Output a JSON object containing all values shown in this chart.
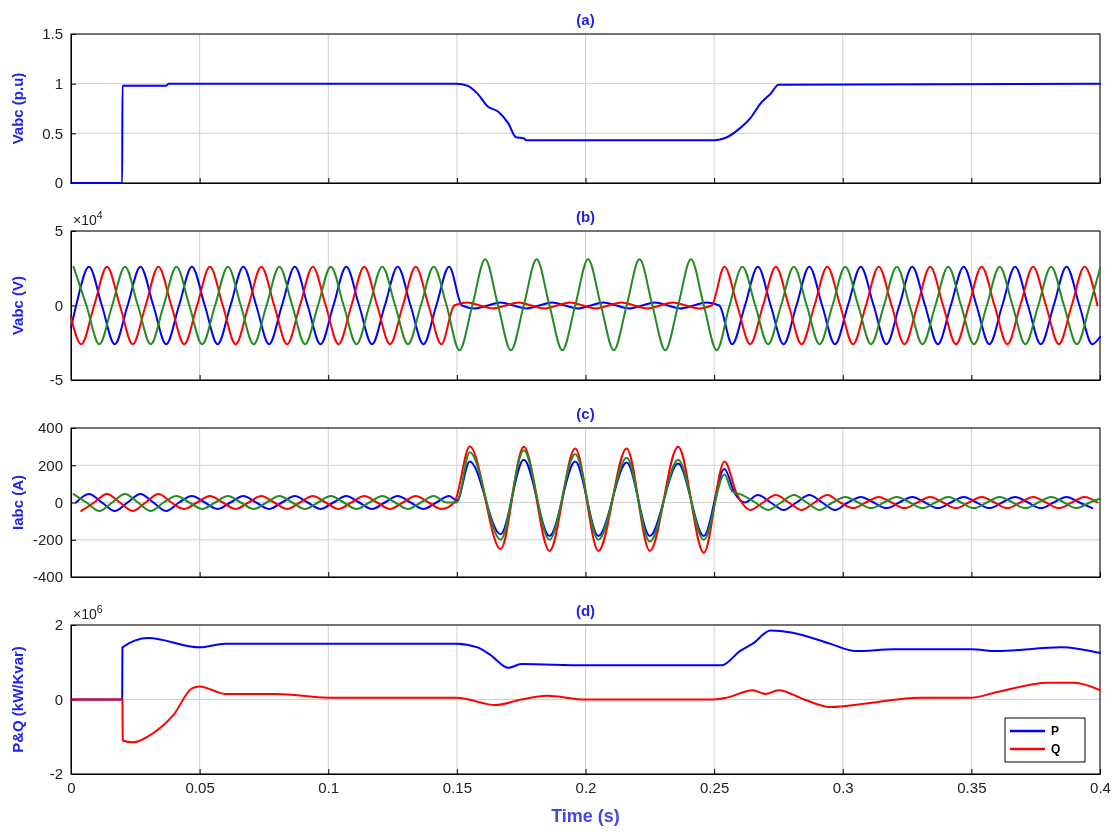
{
  "chart_data": [
    {
      "type": "line",
      "title": "(a)",
      "ylabel": "Vabc (p.u)",
      "xlim": [
        0,
        0.4
      ],
      "xticks": [
        0,
        0.05,
        0.1,
        0.15,
        0.2,
        0.25,
        0.3,
        0.35,
        0.4
      ],
      "ylim": [
        0,
        1.5
      ],
      "yticks": [
        0,
        0.5,
        1,
        1.5
      ],
      "grid": true,
      "tick_labels": "y",
      "series": [
        {
          "color": "#0000ff",
          "x": [
            0,
            0.0199,
            0.02,
            0.037,
            0.038,
            0.15,
            0.154,
            0.158,
            0.162,
            0.166,
            0.17,
            0.173,
            0.176,
            0.177,
            0.25,
            0.254,
            0.26,
            0.264,
            0.268,
            0.272,
            0.275,
            0.4
          ],
          "values": [
            0,
            0,
            0.98,
            0.98,
            1,
            1,
            0.98,
            0.9,
            0.77,
            0.72,
            0.6,
            0.46,
            0.45,
            0.43,
            0.43,
            0.45,
            0.55,
            0.65,
            0.8,
            0.9,
            0.99,
            1
          ]
        }
      ]
    },
    {
      "type": "line",
      "title": "(b)",
      "ylabel": "Vabc (V)",
      "annotations": [
        "×10$^{4}$"
      ],
      "xlim": [
        0,
        0.4
      ],
      "xticks": [
        0,
        0.05,
        0.1,
        0.15,
        0.2,
        0.25,
        0.3,
        0.35,
        0.4
      ],
      "ylim": [
        -5,
        5
      ],
      "yticks": [
        -5,
        0,
        5
      ],
      "grid": true,
      "tick_labels": "y",
      "series": [
        {
          "color": "#0000ff",
          "x": [
            0,
            0.002,
            0.007,
            0.012,
            0.017,
            0.022,
            0.027,
            0.032,
            0.037,
            0.042,
            0.047,
            0.052,
            0.057,
            0.062,
            0.067,
            0.072,
            0.077,
            0.082,
            0.087,
            0.092,
            0.097,
            0.102,
            0.107,
            0.112,
            0.117,
            0.122,
            0.127,
            0.132,
            0.137,
            0.142,
            0.147,
            0.152,
            0.157,
            0.162,
            0.167,
            0.172,
            0.177,
            0.182,
            0.187,
            0.192,
            0.197,
            0.202,
            0.207,
            0.212,
            0.217,
            0.222,
            0.227,
            0.232,
            0.237,
            0.242,
            0.247,
            0.252,
            0.257,
            0.262,
            0.267,
            0.272,
            0.277,
            0.282,
            0.287,
            0.292,
            0.297,
            0.302,
            0.307,
            0.312,
            0.317,
            0.322,
            0.327,
            0.332,
            0.337,
            0.342,
            0.347,
            0.352,
            0.357,
            0.362,
            0.367,
            0.372,
            0.377,
            0.382,
            0.387,
            0.392,
            0.397,
            0.4
          ],
          "values": [
            -1.5,
            0,
            2.6,
            0,
            -2.6,
            0,
            2.6,
            0,
            -2.6,
            0,
            2.6,
            0,
            -2.6,
            0,
            2.6,
            0,
            -2.6,
            0,
            2.6,
            0,
            -2.6,
            0,
            2.6,
            0,
            -2.6,
            0,
            2.6,
            0,
            -2.6,
            0,
            2.6,
            0,
            -0.2,
            0,
            0.2,
            0,
            -0.2,
            0,
            0.2,
            0,
            -0.2,
            0,
            0.2,
            0,
            -0.2,
            0,
            0.2,
            0,
            -0.2,
            0,
            0.2,
            0,
            -2.6,
            0,
            2.6,
            0,
            -2.6,
            0,
            2.6,
            0,
            -2.6,
            0,
            2.6,
            0,
            -2.6,
            0,
            2.6,
            0,
            -2.6,
            0,
            2.6,
            0,
            -2.6,
            0,
            2.6,
            0,
            -2.6,
            0,
            2.6,
            0,
            -2.6,
            -2.1
          ]
        },
        {
          "color": "#ff0000",
          "x": [
            0,
            0.004,
            0.009,
            0.014,
            0.019,
            0.024,
            0.029,
            0.034,
            0.039,
            0.044,
            0.049,
            0.054,
            0.059,
            0.064,
            0.069,
            0.074,
            0.079,
            0.084,
            0.089,
            0.094,
            0.099,
            0.104,
            0.109,
            0.114,
            0.119,
            0.124,
            0.129,
            0.134,
            0.139,
            0.144,
            0.149,
            0.154,
            0.159,
            0.164,
            0.169,
            0.174,
            0.179,
            0.184,
            0.189,
            0.194,
            0.199,
            0.204,
            0.209,
            0.214,
            0.219,
            0.224,
            0.229,
            0.234,
            0.239,
            0.244,
            0.249,
            0.254,
            0.259,
            0.264,
            0.269,
            0.274,
            0.279,
            0.284,
            0.289,
            0.294,
            0.299,
            0.304,
            0.309,
            0.314,
            0.319,
            0.324,
            0.329,
            0.334,
            0.339,
            0.344,
            0.349,
            0.354,
            0.359,
            0.364,
            0.369,
            0.374,
            0.379,
            0.384,
            0.389,
            0.394,
            0.399
          ],
          "values": [
            -0.8,
            -2.6,
            0,
            2.6,
            0,
            -2.6,
            0,
            2.6,
            0,
            -2.6,
            0,
            2.6,
            0,
            -2.6,
            0,
            2.6,
            0,
            -2.6,
            0,
            2.6,
            0,
            -2.6,
            0,
            2.6,
            0,
            -2.6,
            0,
            2.6,
            0,
            -2.6,
            0,
            0.2,
            0,
            -0.2,
            0,
            0.2,
            0,
            -0.2,
            0,
            0.2,
            0,
            -0.2,
            0,
            0.2,
            0,
            -0.2,
            0,
            0.2,
            0,
            -0.2,
            0,
            2.6,
            0,
            -2.6,
            0,
            2.6,
            0,
            -2.6,
            0,
            2.6,
            0,
            -2.6,
            0,
            2.6,
            0,
            -2.6,
            0,
            2.6,
            0,
            -2.6,
            0,
            2.6,
            0,
            -2.6,
            0,
            2.6,
            0,
            -2.6,
            0,
            2.6,
            0
          ]
        },
        {
          "color": "#228b22",
          "x": [
            0.001,
            0.006,
            0.011,
            0.016,
            0.021,
            0.026,
            0.031,
            0.036,
            0.041,
            0.046,
            0.051,
            0.056,
            0.061,
            0.066,
            0.071,
            0.076,
            0.081,
            0.086,
            0.091,
            0.096,
            0.101,
            0.106,
            0.111,
            0.116,
            0.121,
            0.126,
            0.131,
            0.136,
            0.141,
            0.146,
            0.151,
            0.156,
            0.161,
            0.166,
            0.171,
            0.176,
            0.181,
            0.186,
            0.191,
            0.196,
            0.201,
            0.206,
            0.211,
            0.216,
            0.221,
            0.226,
            0.231,
            0.236,
            0.241,
            0.246,
            0.251,
            0.256,
            0.261,
            0.266,
            0.271,
            0.276,
            0.281,
            0.286,
            0.291,
            0.296,
            0.301,
            0.306,
            0.311,
            0.316,
            0.321,
            0.326,
            0.331,
            0.336,
            0.341,
            0.346,
            0.351,
            0.356,
            0.361,
            0.366,
            0.371,
            0.376,
            0.381,
            0.386,
            0.391,
            0.396,
            0.4
          ],
          "values": [
            2.6,
            0,
            -2.6,
            0,
            2.6,
            0,
            -2.6,
            0,
            2.6,
            0,
            -2.6,
            0,
            2.6,
            0,
            -2.6,
            0,
            2.6,
            0,
            -2.6,
            0,
            2.6,
            0,
            -2.6,
            0,
            2.6,
            0,
            -2.6,
            0,
            2.6,
            0,
            -3,
            0,
            3.1,
            0,
            -3,
            0,
            3.1,
            0,
            -3,
            0,
            3.1,
            0,
            -3,
            0,
            3.1,
            0,
            -3,
            0,
            3.1,
            0,
            -3,
            0,
            2.6,
            0,
            -2.6,
            0,
            2.6,
            0,
            -2.6,
            0,
            2.6,
            0,
            -2.6,
            0,
            2.6,
            0,
            -2.6,
            0,
            2.6,
            0,
            -2.6,
            0,
            2.6,
            0,
            -2.6,
            0,
            2.6,
            0,
            -2.6,
            0,
            2.5
          ]
        }
      ]
    },
    {
      "type": "line",
      "title": "(c)",
      "ylabel": "Iabc (A)",
      "xlim": [
        0,
        0.4
      ],
      "xticks": [
        0,
        0.05,
        0.1,
        0.15,
        0.2,
        0.25,
        0.3,
        0.35,
        0.4
      ],
      "ylim": [
        -400,
        400
      ],
      "yticks": [
        -400,
        -200,
        0,
        200,
        400
      ],
      "grid": true,
      "tick_labels": "y",
      "series": [
        {
          "color": "#0000ff",
          "x": [
            0.002,
            0.007,
            0.012,
            0.017,
            0.022,
            0.027,
            0.032,
            0.037,
            0.042,
            0.047,
            0.052,
            0.057,
            0.062,
            0.067,
            0.072,
            0.077,
            0.082,
            0.087,
            0.092,
            0.097,
            0.102,
            0.107,
            0.112,
            0.117,
            0.122,
            0.127,
            0.132,
            0.137,
            0.142,
            0.147,
            0.15,
            0.155,
            0.167,
            0.176,
            0.186,
            0.196,
            0.205,
            0.216,
            0.225,
            0.236,
            0.246,
            0.254,
            0.258,
            0.262,
            0.267,
            0.272,
            0.277,
            0.282,
            0.287,
            0.292,
            0.297,
            0.302,
            0.307,
            0.312,
            0.317,
            0.322,
            0.327,
            0.332,
            0.337,
            0.342,
            0.347,
            0.352,
            0.357,
            0.362,
            0.367,
            0.372,
            0.377,
            0.382,
            0.387,
            0.392,
            0.397
          ],
          "values": [
            0,
            45,
            0,
            -45,
            0,
            45,
            0,
            -45,
            0,
            35,
            0,
            -35,
            0,
            35,
            0,
            -35,
            0,
            35,
            0,
            -35,
            0,
            35,
            0,
            -35,
            0,
            35,
            0,
            -35,
            0,
            35,
            10,
            220,
            -170,
            230,
            -180,
            220,
            -180,
            215,
            -180,
            210,
            -180,
            180,
            50,
            0,
            40,
            0,
            -40,
            0,
            40,
            0,
            -40,
            0,
            30,
            0,
            -30,
            0,
            30,
            0,
            -30,
            0,
            30,
            0,
            -30,
            0,
            30,
            0,
            -30,
            0,
            30,
            0,
            -30
          ]
        },
        {
          "color": "#ff0000",
          "x": [
            0.004,
            0.009,
            0.014,
            0.019,
            0.024,
            0.029,
            0.034,
            0.039,
            0.044,
            0.049,
            0.054,
            0.059,
            0.064,
            0.069,
            0.074,
            0.079,
            0.084,
            0.089,
            0.094,
            0.099,
            0.104,
            0.109,
            0.114,
            0.119,
            0.124,
            0.129,
            0.134,
            0.139,
            0.144,
            0.149,
            0.155,
            0.167,
            0.176,
            0.186,
            0.196,
            0.205,
            0.216,
            0.225,
            0.236,
            0.246,
            0.254,
            0.259,
            0.264,
            0.269,
            0.274,
            0.279,
            0.284,
            0.289,
            0.294,
            0.299,
            0.304,
            0.309,
            0.314,
            0.319,
            0.324,
            0.329,
            0.334,
            0.339,
            0.344,
            0.349,
            0.354,
            0.359,
            0.364,
            0.369,
            0.374,
            0.379,
            0.384,
            0.389,
            0.394,
            0.399
          ],
          "values": [
            -45,
            0,
            45,
            0,
            -45,
            0,
            45,
            0,
            -35,
            0,
            35,
            0,
            -35,
            0,
            35,
            0,
            -35,
            0,
            35,
            0,
            -35,
            0,
            35,
            0,
            -35,
            0,
            35,
            0,
            -35,
            0,
            300,
            -250,
            300,
            -260,
            290,
            -260,
            290,
            -260,
            300,
            -270,
            220,
            40,
            -40,
            0,
            40,
            0,
            -40,
            0,
            40,
            0,
            -30,
            0,
            30,
            0,
            -30,
            0,
            30,
            0,
            -30,
            0,
            30,
            0,
            -30,
            0,
            30,
            0,
            -30,
            0,
            30,
            0
          ]
        },
        {
          "color": "#228b22",
          "x": [
            0.001,
            0.006,
            0.011,
            0.016,
            0.021,
            0.026,
            0.031,
            0.036,
            0.041,
            0.046,
            0.051,
            0.056,
            0.061,
            0.066,
            0.071,
            0.076,
            0.081,
            0.086,
            0.091,
            0.096,
            0.101,
            0.106,
            0.111,
            0.116,
            0.121,
            0.126,
            0.131,
            0.136,
            0.141,
            0.146,
            0.15,
            0.155,
            0.167,
            0.176,
            0.186,
            0.196,
            0.205,
            0.216,
            0.225,
            0.236,
            0.246,
            0.254,
            0.257,
            0.261,
            0.266,
            0.271,
            0.276,
            0.281,
            0.286,
            0.291,
            0.296,
            0.301,
            0.306,
            0.311,
            0.316,
            0.321,
            0.326,
            0.331,
            0.336,
            0.341,
            0.346,
            0.351,
            0.356,
            0.361,
            0.366,
            0.371,
            0.376,
            0.381,
            0.386,
            0.391,
            0.396,
            0.4
          ],
          "values": [
            45,
            0,
            -45,
            0,
            45,
            0,
            -45,
            0,
            35,
            0,
            -35,
            0,
            35,
            0,
            -35,
            0,
            35,
            0,
            -35,
            0,
            35,
            0,
            -35,
            0,
            35,
            0,
            -35,
            0,
            35,
            0,
            0,
            270,
            -200,
            280,
            -200,
            260,
            -200,
            240,
            -210,
            230,
            -200,
            150,
            60,
            40,
            0,
            -40,
            0,
            40,
            0,
            -40,
            0,
            30,
            0,
            -30,
            0,
            30,
            0,
            -30,
            0,
            30,
            0,
            -30,
            0,
            30,
            0,
            -30,
            0,
            30,
            0,
            -30,
            0,
            20
          ]
        }
      ]
    },
    {
      "type": "line",
      "title": "(d)",
      "xlabel": "Time (s)",
      "ylabel": "P&Q (kW/Kvar)",
      "annotations": [
        "×10$^{6}$"
      ],
      "xlim": [
        0,
        0.4
      ],
      "xticks": [
        0,
        0.05,
        0.1,
        0.15,
        0.2,
        0.25,
        0.3,
        0.35,
        0.4
      ],
      "ylim": [
        -2,
        2
      ],
      "yticks": [
        -2,
        0,
        2
      ],
      "grid": true,
      "legend": "bottom right",
      "series": [
        {
          "name": "P",
          "color": "#0000ff",
          "x": [
            0,
            0.0199,
            0.02,
            0.03,
            0.05,
            0.06,
            0.1,
            0.15,
            0.158,
            0.163,
            0.17,
            0.175,
            0.2,
            0.253,
            0.26,
            0.265,
            0.272,
            0.28,
            0.295,
            0.305,
            0.32,
            0.35,
            0.36,
            0.385,
            0.4
          ],
          "values": [
            0,
            0,
            1.4,
            1.65,
            1.4,
            1.5,
            1.5,
            1.5,
            1.4,
            1.2,
            0.85,
            0.95,
            0.92,
            0.92,
            1.3,
            1.5,
            1.85,
            1.8,
            1.5,
            1.3,
            1.35,
            1.35,
            1.3,
            1.4,
            1.25
          ]
        },
        {
          "name": "Q",
          "color": "#ff0000",
          "x": [
            0,
            0.02,
            0.0201,
            0.024,
            0.032,
            0.04,
            0.047,
            0.05,
            0.06,
            0.08,
            0.1,
            0.15,
            0.165,
            0.175,
            0.185,
            0.2,
            0.25,
            0.255,
            0.265,
            0.27,
            0.275,
            0.285,
            0.295,
            0.31,
            0.33,
            0.35,
            0.36,
            0.38,
            0.39,
            0.4
          ],
          "values": [
            0,
            0,
            -1.1,
            -1.15,
            -0.9,
            -0.4,
            0.3,
            0.35,
            0.15,
            0.15,
            0.05,
            0.05,
            -0.15,
            0,
            0.1,
            0,
            0,
            0.05,
            0.25,
            0.15,
            0.25,
            0,
            -0.2,
            -0.1,
            0.05,
            0.05,
            0.2,
            0.45,
            0.45,
            0.25
          ]
        }
      ]
    }
  ]
}
